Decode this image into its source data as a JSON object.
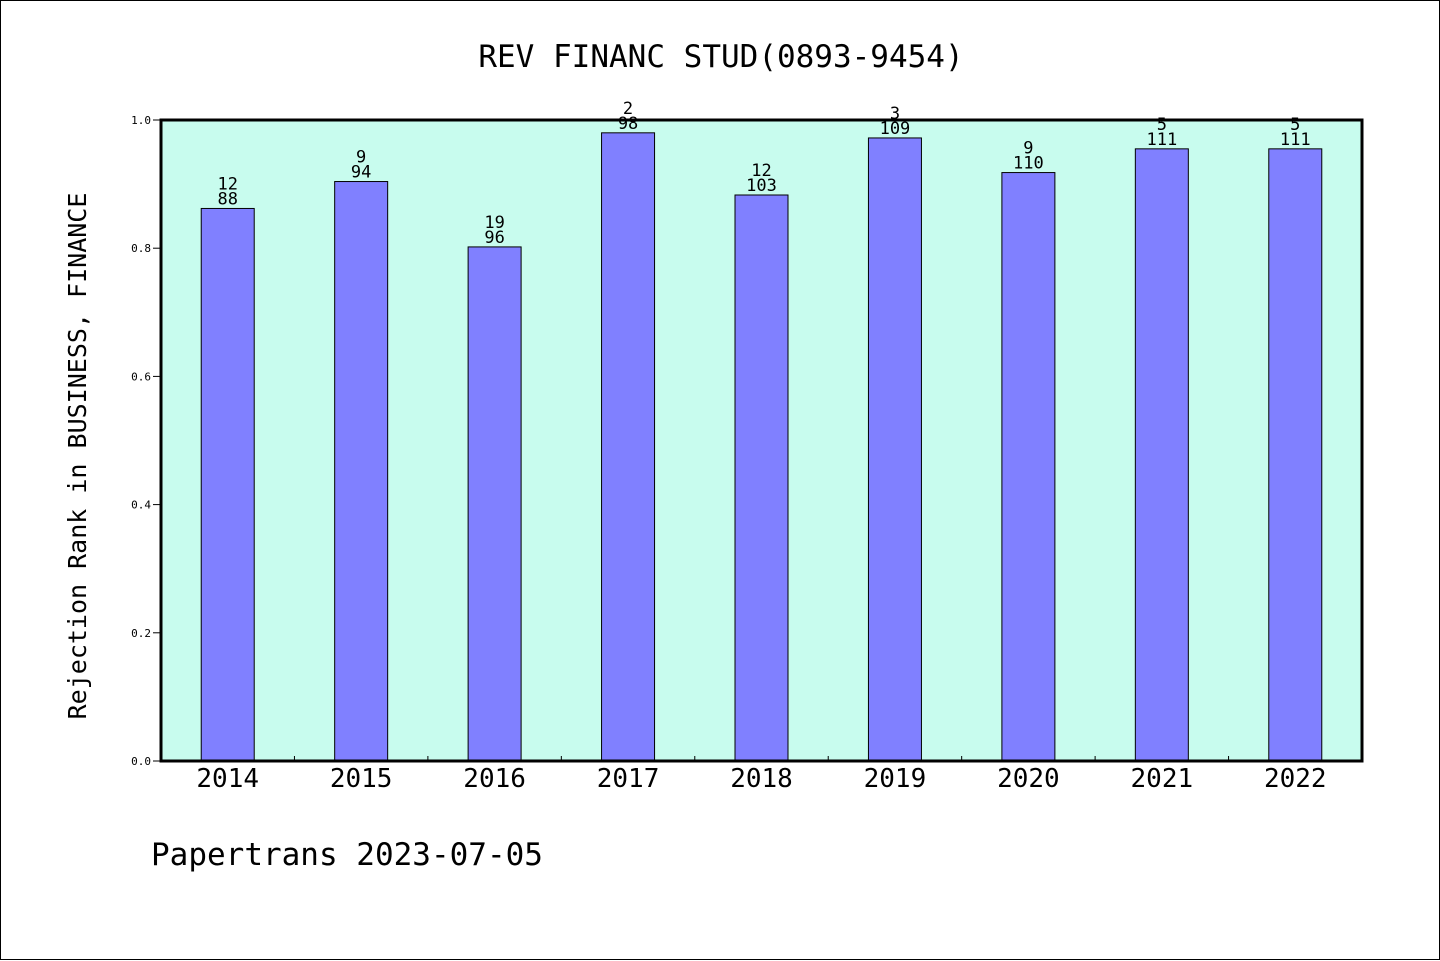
{
  "chart_data": {
    "type": "bar",
    "title": "REV FINANC STUD(0893-9454)",
    "ylabel": "Rejection Rank in BUSINESS, FINANCE",
    "xlabel": "",
    "ylim": [
      0,
      1.0
    ],
    "yticks": [
      "0.0",
      "0.2",
      "0.4",
      "0.6",
      "0.8",
      "1.0"
    ],
    "categories": [
      "2014",
      "2015",
      "2016",
      "2017",
      "2018",
      "2019",
      "2020",
      "2021",
      "2022"
    ],
    "values": [
      0.862,
      0.904,
      0.802,
      0.98,
      0.883,
      0.972,
      0.918,
      0.955,
      0.955
    ],
    "label_rank": [
      "12",
      "9",
      "19",
      "2",
      "12",
      "3",
      "9",
      "5",
      "5"
    ],
    "label_total": [
      "88",
      "94",
      "96",
      "98",
      "103",
      "109",
      "110",
      "111",
      "111"
    ],
    "grid": false,
    "legend": "none",
    "colors": {
      "plot_background": "#c8fcee",
      "bar_fill": "#8080ff",
      "bar_stroke": "#000000"
    }
  },
  "footer": {
    "text": "Papertrans 2023-07-05"
  }
}
